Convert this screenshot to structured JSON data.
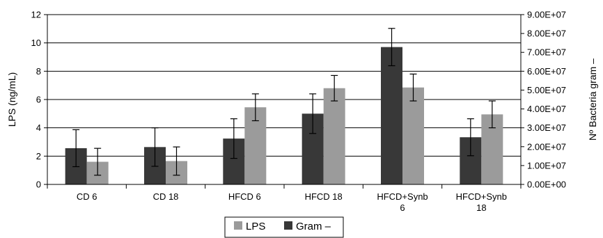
{
  "chart_data": {
    "type": "bar",
    "categories": [
      [
        "CD 6"
      ],
      [
        "CD 18"
      ],
      [
        "HFCD 6"
      ],
      [
        "HFCD 18"
      ],
      [
        "HFCD+Synb",
        "6"
      ],
      [
        "HFCD+Synb",
        "18"
      ]
    ],
    "ylabel": "LPS (ng/mL)",
    "y2label": "Nº Bacteria gram –",
    "ylim": [
      0,
      12
    ],
    "yticks": [
      "0",
      "2",
      "4",
      "6",
      "8",
      "10",
      "12"
    ],
    "y2lim": [
      0,
      90000000
    ],
    "y2ticks": [
      "0.00E+00",
      "1.00E+07",
      "2.00E+07",
      "3.00E+07",
      "4.00E+07",
      "5.00E+07",
      "6.00E+07",
      "7.00E+07",
      "8.00E+07",
      "9.00E+07"
    ],
    "grid": true,
    "legend_position": "bottom",
    "series": [
      {
        "name": "Gram –",
        "axis": "right",
        "color": "#383838",
        "values": [
          19200000,
          19800000,
          24300000,
          37500000,
          72800000,
          25000000
        ],
        "errors": [
          9800000,
          10200000,
          10500000,
          10500000,
          9900000,
          9800000
        ]
      },
      {
        "name": "LPS",
        "axis": "left",
        "color": "#9b9b9b",
        "values": [
          1.6,
          1.65,
          5.45,
          6.8,
          6.85,
          4.95
        ],
        "errors": [
          0.95,
          1.0,
          0.95,
          0.9,
          0.95,
          0.95
        ]
      }
    ],
    "legend_order": [
      "LPS",
      "Gram –"
    ]
  }
}
